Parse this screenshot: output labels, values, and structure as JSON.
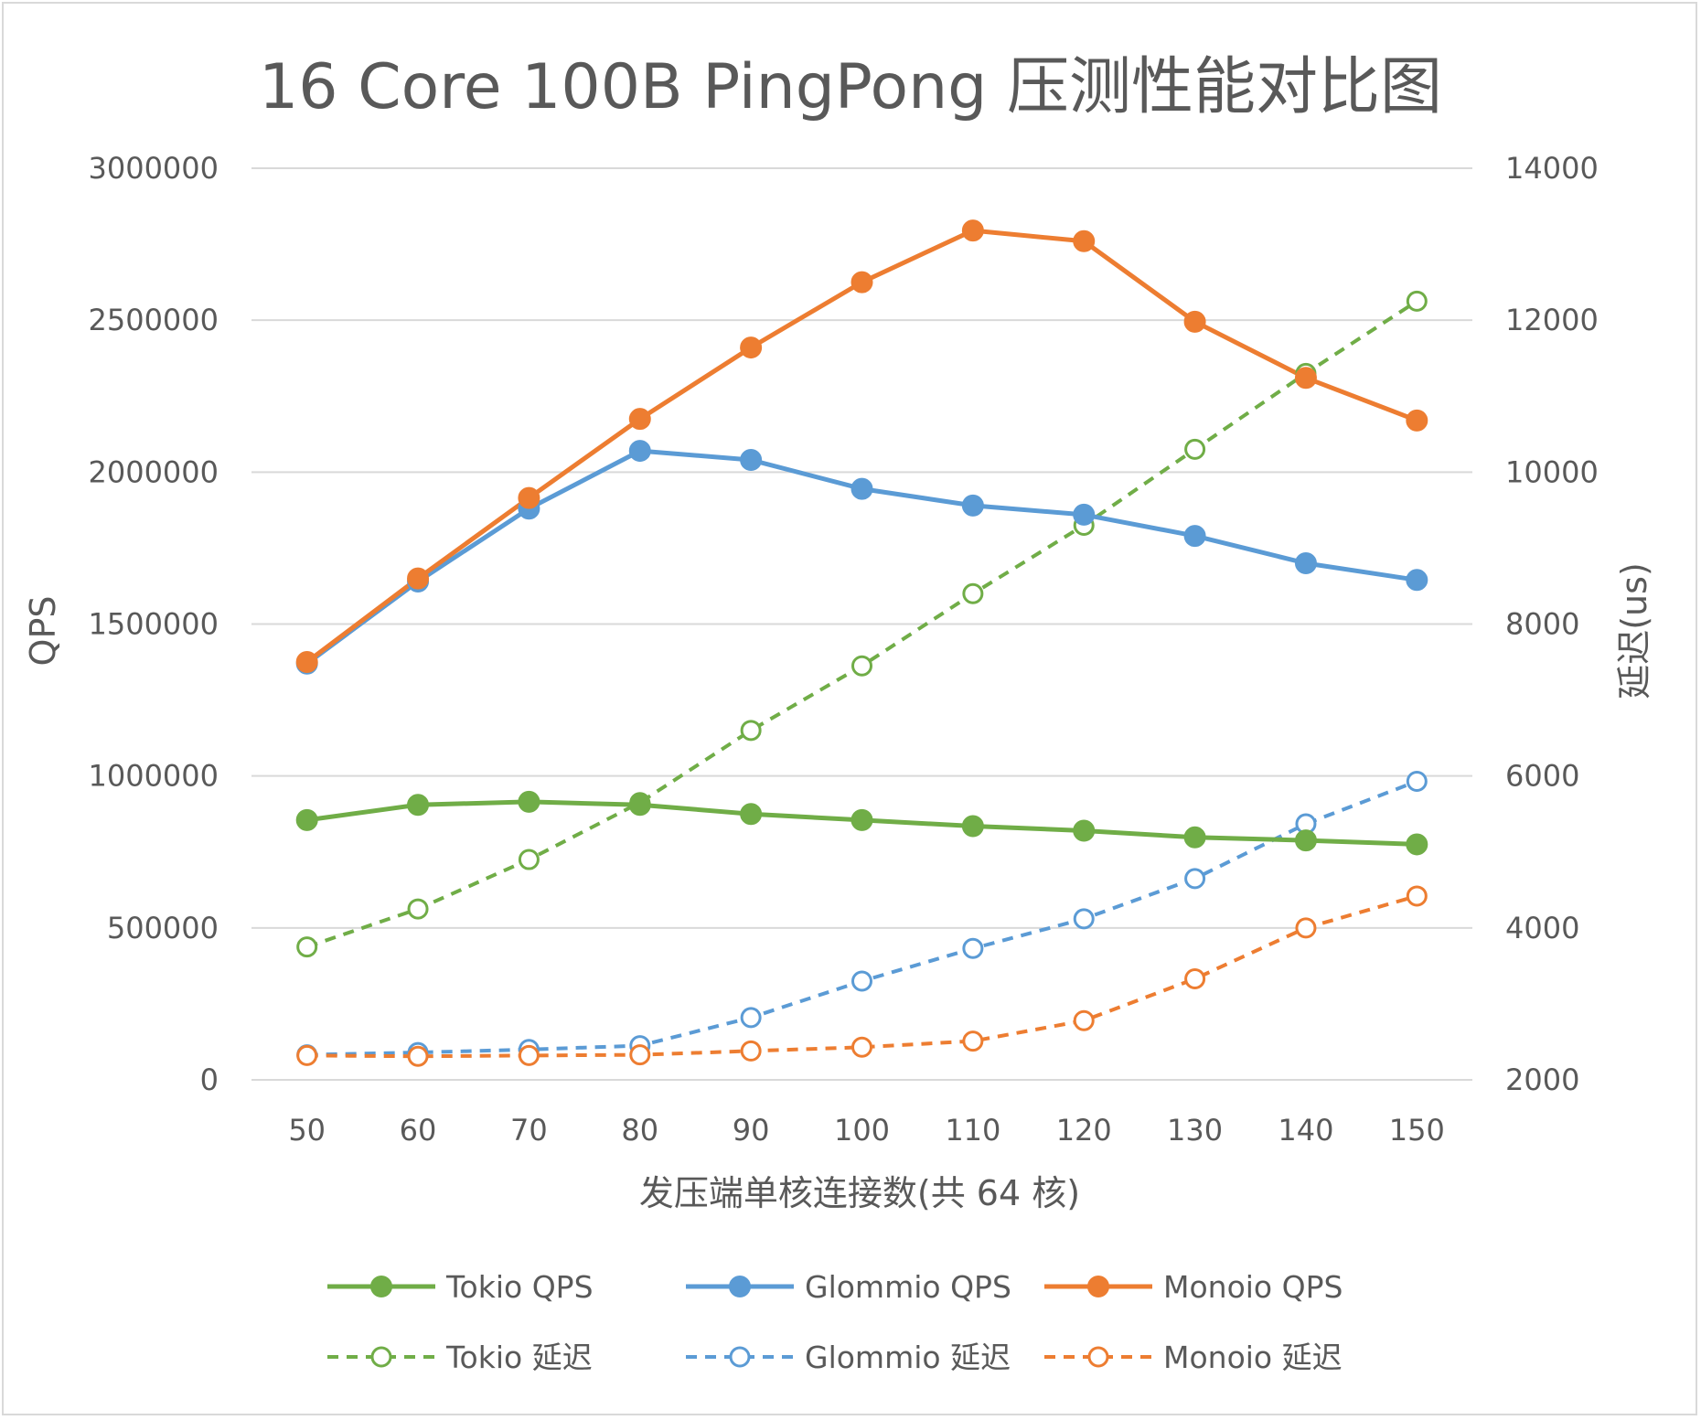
{
  "chart_data": {
    "type": "line",
    "title": "16 Core 100B PingPong 压测性能对比图",
    "xlabel": "发压端单核连接数(共 64 核)",
    "ylabel": "QPS",
    "y2label": "延迟(us)",
    "x": [
      50,
      60,
      70,
      80,
      90,
      100,
      110,
      120,
      130,
      140,
      150
    ],
    "ylim": [
      0,
      3000000
    ],
    "y_ticks": [
      0,
      500000,
      1000000,
      1500000,
      2000000,
      2500000,
      3000000
    ],
    "y2lim": [
      2000,
      14000
    ],
    "y2_ticks": [
      2000,
      4000,
      6000,
      8000,
      10000,
      12000,
      14000
    ],
    "grid": true,
    "legend_position": "bottom",
    "series": [
      {
        "name": "Tokio QPS",
        "axis": "left",
        "style": "solid",
        "marker": "filled",
        "color": "#70ad47",
        "values": [
          855000,
          905000,
          915000,
          905000,
          875000,
          855000,
          835000,
          820000,
          798000,
          788000,
          775000
        ]
      },
      {
        "name": "Glommio QPS",
        "axis": "left",
        "style": "solid",
        "marker": "filled",
        "color": "#5b9bd5",
        "values": [
          1370000,
          1640000,
          1880000,
          2070000,
          2040000,
          1945000,
          1890000,
          1860000,
          1790000,
          1700000,
          1645000
        ]
      },
      {
        "name": "Monoio QPS",
        "axis": "left",
        "style": "solid",
        "marker": "filled",
        "color": "#ed7d31",
        "values": [
          1375000,
          1650000,
          1915000,
          2175000,
          2410000,
          2625000,
          2795000,
          2760000,
          2495000,
          2310000,
          2170000
        ]
      },
      {
        "name": "Tokio 延迟",
        "axis": "right",
        "style": "dashed",
        "marker": "hollow",
        "color": "#70ad47",
        "values": [
          3750,
          4250,
          4900,
          5650,
          6600,
          7450,
          8400,
          9300,
          10300,
          11300,
          12250
        ]
      },
      {
        "name": "Glommio 延迟",
        "axis": "right",
        "style": "dashed",
        "marker": "hollow",
        "color": "#5b9bd5",
        "values": [
          2330,
          2360,
          2400,
          2450,
          2820,
          3300,
          3730,
          4120,
          4650,
          5370,
          5930
        ]
      },
      {
        "name": "Monoio 延迟",
        "axis": "right",
        "style": "dashed",
        "marker": "hollow",
        "color": "#ed7d31",
        "values": [
          2320,
          2310,
          2320,
          2330,
          2380,
          2430,
          2510,
          2780,
          3330,
          4000,
          4420
        ]
      }
    ]
  }
}
